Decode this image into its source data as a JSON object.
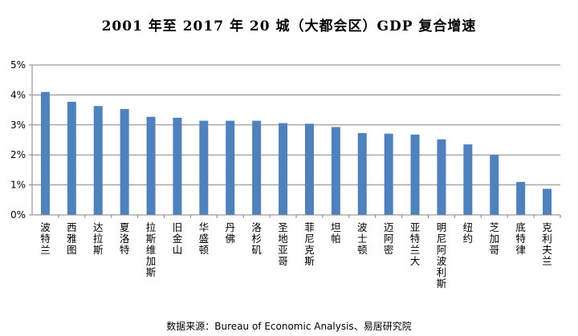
{
  "title": "2001 年至 2017 年 20 城（大都会区）GDP 复合增速",
  "source": "数据来源：Bureau of Economic Analysis、易居研究院",
  "chart_data": {
    "type": "bar",
    "title": "2001 年至 2017 年 20 城（大都会区）GDP 复合增速",
    "categories": [
      "波特兰",
      "西雅图",
      "达拉斯",
      "夏洛特",
      "拉斯维加斯",
      "旧金山",
      "华盛顿",
      "丹佛",
      "洛杉矶",
      "圣地亚哥",
      "菲尼克斯",
      "坦帕",
      "波士顿",
      "迈阿密",
      "亚特兰大",
      "明尼阿波利斯",
      "纽约",
      "芝加哥",
      "底特律",
      "克利夫兰"
    ],
    "values": [
      4.1,
      3.77,
      3.63,
      3.53,
      3.27,
      3.24,
      3.14,
      3.14,
      3.14,
      3.06,
      3.04,
      2.93,
      2.73,
      2.71,
      2.68,
      2.52,
      2.35,
      2.0,
      1.1,
      0.87
    ],
    "ylim": [
      0,
      5
    ],
    "yticks": [
      "0%",
      "1%",
      "2%",
      "3%",
      "4%",
      "5%"
    ],
    "grid": true,
    "legend": "none",
    "bar_color": "#4f81bd"
  }
}
